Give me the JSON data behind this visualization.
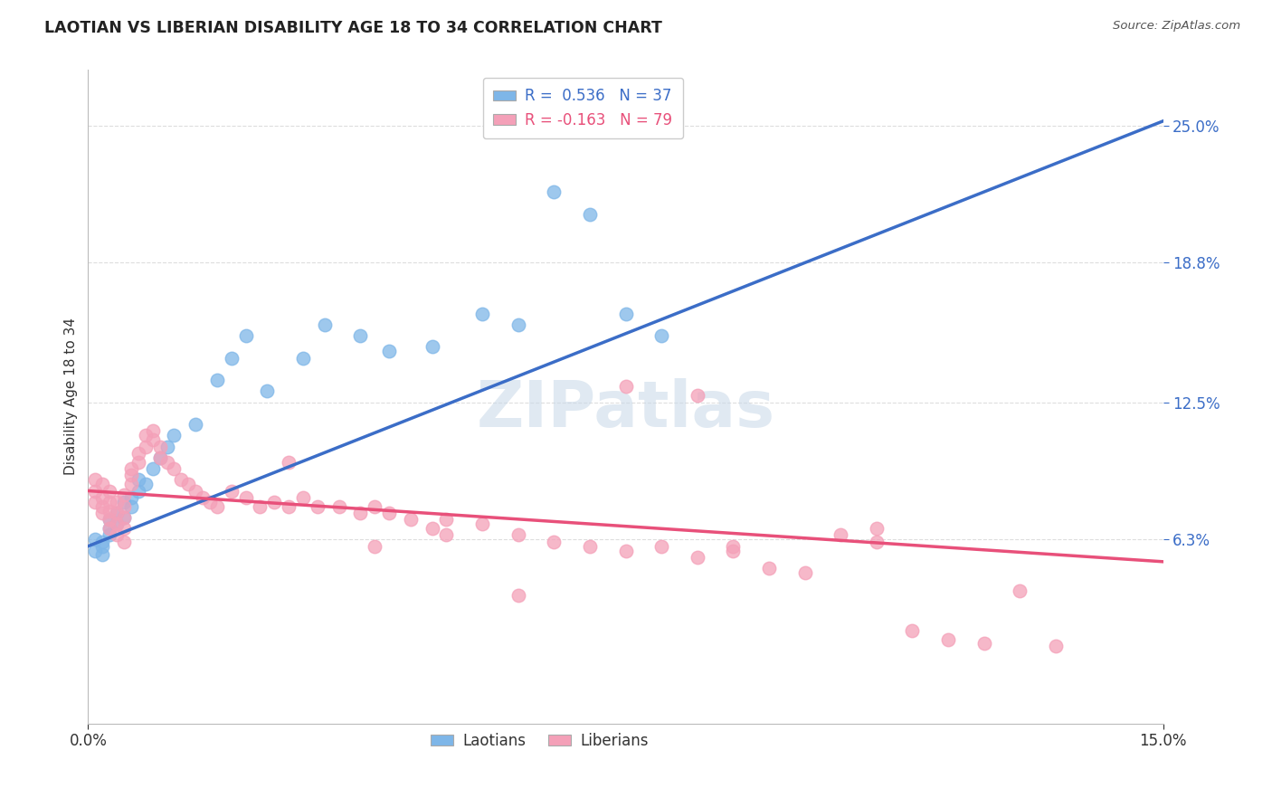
{
  "title": "LAOTIAN VS LIBERIAN DISABILITY AGE 18 TO 34 CORRELATION CHART",
  "source": "Source: ZipAtlas.com",
  "ylabel": "Disability Age 18 to 34",
  "xlim": [
    0.0,
    0.15
  ],
  "ylim": [
    -0.02,
    0.275
  ],
  "ytick_positions": [
    0.063,
    0.125,
    0.188,
    0.25
  ],
  "ytick_labels": [
    "6.3%",
    "12.5%",
    "18.8%",
    "25.0%"
  ],
  "xtick_positions": [
    0.0,
    0.15
  ],
  "xtick_labels": [
    "0.0%",
    "15.0%"
  ],
  "laotian_color": "#7EB6E8",
  "liberian_color": "#F4A0B8",
  "laotian_line_color": "#3B6DC7",
  "liberian_line_color": "#E8507A",
  "laotian_R": "0.536",
  "laotian_N": "37",
  "liberian_R": "-0.163",
  "liberian_N": "79",
  "lao_line_x": [
    0.0,
    0.15
  ],
  "lao_line_y": [
    0.06,
    0.252
  ],
  "lib_line_x": [
    0.0,
    0.15
  ],
  "lib_line_y": [
    0.085,
    0.053
  ],
  "laotian_x": [
    0.001,
    0.001,
    0.002,
    0.002,
    0.002,
    0.003,
    0.003,
    0.003,
    0.004,
    0.004,
    0.005,
    0.005,
    0.006,
    0.006,
    0.007,
    0.007,
    0.008,
    0.009,
    0.01,
    0.011,
    0.012,
    0.015,
    0.018,
    0.02,
    0.022,
    0.025,
    0.03,
    0.033,
    0.038,
    0.042,
    0.048,
    0.055,
    0.06,
    0.065,
    0.07,
    0.075,
    0.08
  ],
  "laotian_y": [
    0.063,
    0.058,
    0.06,
    0.062,
    0.056,
    0.065,
    0.068,
    0.072,
    0.07,
    0.075,
    0.08,
    0.073,
    0.078,
    0.082,
    0.085,
    0.09,
    0.088,
    0.095,
    0.1,
    0.105,
    0.11,
    0.115,
    0.135,
    0.145,
    0.155,
    0.13,
    0.145,
    0.16,
    0.155,
    0.148,
    0.15,
    0.165,
    0.16,
    0.22,
    0.21,
    0.165,
    0.155
  ],
  "liberian_x": [
    0.001,
    0.001,
    0.001,
    0.002,
    0.002,
    0.002,
    0.002,
    0.003,
    0.003,
    0.003,
    0.003,
    0.003,
    0.004,
    0.004,
    0.004,
    0.004,
    0.005,
    0.005,
    0.005,
    0.005,
    0.005,
    0.006,
    0.006,
    0.006,
    0.007,
    0.007,
    0.008,
    0.008,
    0.009,
    0.009,
    0.01,
    0.01,
    0.011,
    0.012,
    0.013,
    0.014,
    0.015,
    0.016,
    0.017,
    0.018,
    0.02,
    0.022,
    0.024,
    0.026,
    0.028,
    0.03,
    0.032,
    0.035,
    0.038,
    0.04,
    0.042,
    0.045,
    0.048,
    0.05,
    0.055,
    0.06,
    0.065,
    0.07,
    0.075,
    0.08,
    0.085,
    0.09,
    0.095,
    0.1,
    0.105,
    0.11,
    0.115,
    0.12,
    0.125,
    0.13,
    0.04,
    0.06,
    0.075,
    0.09,
    0.028,
    0.05,
    0.085,
    0.11,
    0.135
  ],
  "liberian_y": [
    0.08,
    0.085,
    0.09,
    0.075,
    0.078,
    0.082,
    0.088,
    0.068,
    0.072,
    0.076,
    0.08,
    0.085,
    0.065,
    0.07,
    0.075,
    0.08,
    0.062,
    0.068,
    0.073,
    0.078,
    0.083,
    0.088,
    0.092,
    0.095,
    0.098,
    0.102,
    0.105,
    0.11,
    0.112,
    0.108,
    0.105,
    0.1,
    0.098,
    0.095,
    0.09,
    0.088,
    0.085,
    0.082,
    0.08,
    0.078,
    0.085,
    0.082,
    0.078,
    0.08,
    0.078,
    0.082,
    0.078,
    0.078,
    0.075,
    0.078,
    0.075,
    0.072,
    0.068,
    0.065,
    0.07,
    0.065,
    0.062,
    0.06,
    0.058,
    0.06,
    0.055,
    0.058,
    0.05,
    0.048,
    0.065,
    0.062,
    0.022,
    0.018,
    0.016,
    0.04,
    0.06,
    0.038,
    0.132,
    0.06,
    0.098,
    0.072,
    0.128,
    0.068,
    0.015
  ],
  "grid_color": "#DDDDDD",
  "background_color": "#FFFFFF"
}
